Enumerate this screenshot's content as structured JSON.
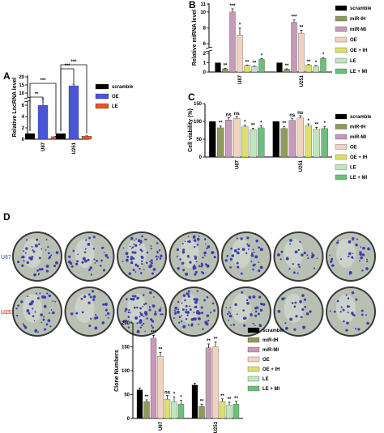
{
  "panels": {
    "A": "A",
    "B": "B",
    "C": "C",
    "D": "D"
  },
  "chart_data": [
    {
      "id": "A",
      "type": "bar",
      "ylabel": "Relative LncRNA level",
      "categories": [
        "U87",
        "U251"
      ],
      "series": [
        {
          "name": "scramble",
          "color": "#000000",
          "values": [
            1.0,
            1.0
          ],
          "err": [
            0,
            0
          ],
          "stars": [
            "",
            ""
          ]
        },
        {
          "name": "OE",
          "color": "#4a56d6",
          "values": [
            6.0,
            14.5
          ],
          "err": [
            0.5,
            1.0
          ],
          "stars": [
            "",
            ""
          ]
        },
        {
          "name": "LE",
          "color": "#e0562a",
          "values": [
            0.45,
            0.55
          ],
          "err": [
            0.05,
            0.05
          ],
          "stars": [
            "",
            ""
          ]
        }
      ],
      "yticks": [
        "0",
        "2",
        "4",
        "6",
        "10",
        "15",
        "20"
      ],
      "brackets": [
        {
          "cat": 0,
          "from": 0,
          "to": 1,
          "label": "**"
        },
        {
          "cat": 0,
          "from": 0,
          "to": 2,
          "label": "***"
        },
        {
          "cat": 1,
          "from": 0,
          "to": 1,
          "label": "***"
        },
        {
          "cat": 1,
          "from": 0,
          "to": 2,
          "label": "***"
        }
      ]
    },
    {
      "id": "B",
      "type": "bar",
      "ylabel": "Relative miRNA level",
      "categories": [
        "U87",
        "U251"
      ],
      "series": [
        {
          "name": "scramble",
          "color": "#000000",
          "values": [
            1.0,
            1.0
          ],
          "err": [
            0,
            0
          ],
          "stars": [
            "",
            ""
          ]
        },
        {
          "name": "miR-IH",
          "color": "#8f9a5a",
          "values": [
            0.35,
            0.3
          ],
          "err": [
            0.05,
            0.05
          ],
          "stars": [
            "**",
            "**"
          ]
        },
        {
          "name": "miR-MI",
          "color": "#c79ab8",
          "values": [
            10.0,
            8.7
          ],
          "err": [
            0.4,
            0.3
          ],
          "stars": [
            "***",
            "***"
          ]
        },
        {
          "name": "OE",
          "color": "#f0d2bf",
          "values": [
            7.1,
            7.3
          ],
          "err": [
            0.9,
            0.4
          ],
          "stars": [
            "*",
            "**"
          ]
        },
        {
          "name": "OE + IH",
          "color": "#dde06a",
          "values": [
            0.7,
            0.75
          ],
          "err": [
            0.05,
            0.05
          ],
          "stars": [
            "**",
            "**"
          ]
        },
        {
          "name": "LE",
          "color": "#bfe6bd",
          "values": [
            0.6,
            0.65
          ],
          "err": [
            0.05,
            0.05
          ],
          "stars": [
            "**",
            "*"
          ]
        },
        {
          "name": "LE + MI",
          "color": "#6cc07b",
          "values": [
            1.35,
            1.45
          ],
          "err": [
            0.1,
            0.1
          ],
          "stars": [
            "*",
            "*"
          ]
        }
      ],
      "yticks": [
        "0",
        "1",
        "2",
        "6",
        "8",
        "10",
        "11"
      ]
    },
    {
      "id": "C",
      "type": "bar",
      "ylabel": "Cell viability (%)",
      "categories": [
        "U87",
        "U251"
      ],
      "ylim": [
        0,
        150
      ],
      "series": [
        {
          "name": "scramble",
          "color": "#000000",
          "values": [
            100,
            100
          ],
          "err": [
            0,
            0
          ],
          "stars": [
            "",
            ""
          ]
        },
        {
          "name": "miR-IH",
          "color": "#8f9a5a",
          "values": [
            82,
            80
          ],
          "err": [
            5,
            6
          ],
          "stars": [
            "**",
            "**"
          ]
        },
        {
          "name": "miR-MI",
          "color": "#c79ab8",
          "values": [
            104,
            103
          ],
          "err": [
            6,
            6
          ],
          "stars": [
            "ns",
            "ns"
          ]
        },
        {
          "name": "OE",
          "color": "#f0d2bf",
          "values": [
            108,
            110
          ],
          "err": [
            6,
            6
          ],
          "stars": [
            "ns",
            "ns"
          ]
        },
        {
          "name": "OE + IH",
          "color": "#dde06a",
          "values": [
            85,
            88
          ],
          "err": [
            5,
            5
          ],
          "stars": [
            "*",
            "*"
          ]
        },
        {
          "name": "LE",
          "color": "#bfe6bd",
          "values": [
            77,
            78
          ],
          "err": [
            4,
            5
          ],
          "stars": [
            "**",
            "**"
          ]
        },
        {
          "name": "LE + MI",
          "color": "#6cc07b",
          "values": [
            82,
            80
          ],
          "err": [
            6,
            6
          ],
          "stars": [
            "*",
            "*"
          ]
        }
      ],
      "yticks": [
        "0",
        "50",
        "100",
        "150"
      ]
    },
    {
      "id": "D",
      "type": "bar",
      "ylabel": "Clone Numbers",
      "categories": [
        "U87",
        "U251"
      ],
      "ylim": [
        0,
        200
      ],
      "series": [
        {
          "name": "scramble",
          "color": "#000000",
          "values": [
            60,
            70
          ],
          "err": [
            4,
            4
          ],
          "stars": [
            "",
            ""
          ]
        },
        {
          "name": "miR-IH",
          "color": "#8f9a5a",
          "values": [
            35,
            25
          ],
          "err": [
            4,
            5
          ],
          "stars": [
            "**",
            "**"
          ]
        },
        {
          "name": "miR-MI",
          "color": "#c79ab8",
          "values": [
            168,
            148
          ],
          "err": [
            6,
            8
          ],
          "stars": [
            "***",
            "**"
          ]
        },
        {
          "name": "OE",
          "color": "#f0d2bf",
          "values": [
            130,
            150
          ],
          "err": [
            8,
            10
          ],
          "stars": [
            "**",
            "**"
          ]
        },
        {
          "name": "OE + IH",
          "color": "#dde06a",
          "values": [
            40,
            35
          ],
          "err": [
            8,
            6
          ],
          "stars": [
            "ns",
            "**"
          ]
        },
        {
          "name": "LE",
          "color": "#bfe6bd",
          "values": [
            35,
            28
          ],
          "err": [
            10,
            6
          ],
          "stars": [
            "*",
            "**"
          ]
        },
        {
          "name": "LE + MI",
          "color": "#6cc07b",
          "values": [
            30,
            30
          ],
          "err": [
            8,
            6
          ],
          "stars": [
            "*",
            "**"
          ]
        }
      ],
      "yticks": [
        "0",
        "50",
        "100",
        "150",
        "200"
      ]
    }
  ],
  "colony": {
    "columns": [
      "scramble",
      "miR-IH",
      "miR-MI",
      "OE",
      "OE + IH",
      "LE",
      "LE + MI"
    ],
    "rows": [
      {
        "label": "U87",
        "color": "#6f7fe0",
        "density": [
          0.6,
          0.5,
          0.9,
          0.8,
          0.55,
          0.35,
          0.45
        ]
      },
      {
        "label": "U251",
        "color": "#e0562a",
        "density": [
          0.6,
          0.4,
          0.85,
          0.9,
          0.5,
          0.3,
          0.35
        ]
      }
    ]
  }
}
